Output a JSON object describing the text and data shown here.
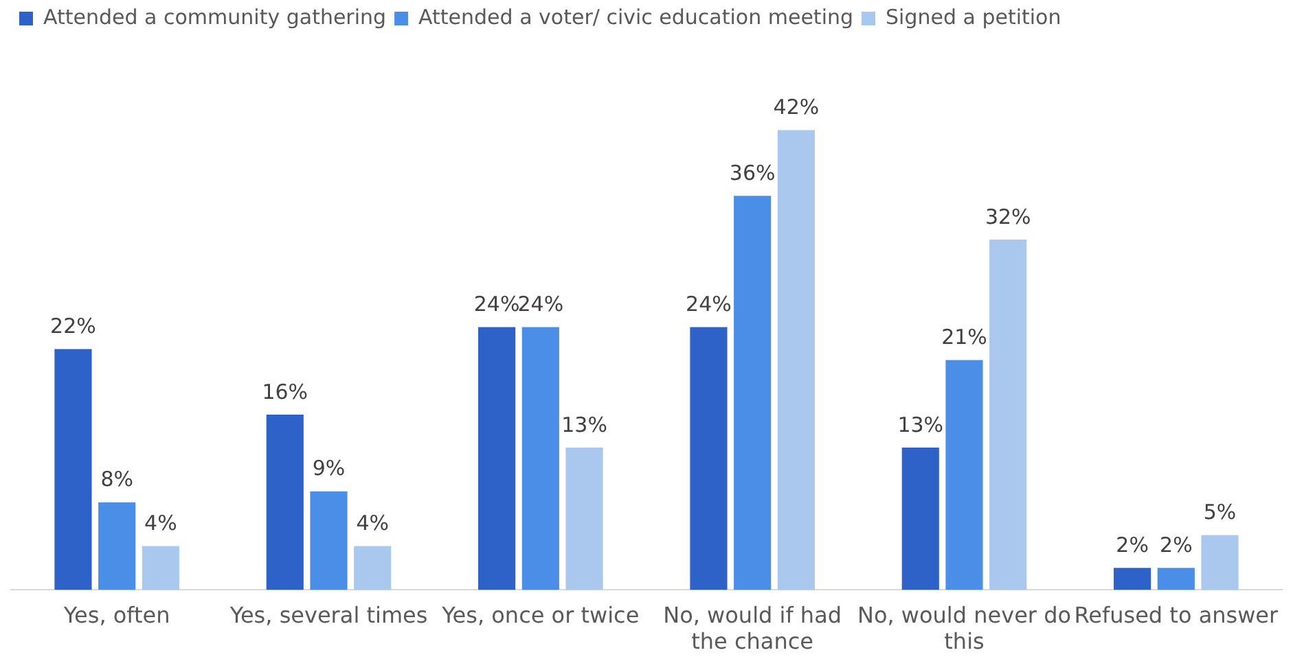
{
  "chart_data": {
    "type": "bar",
    "categories": [
      "Yes, often",
      "Yes, several times",
      "Yes, once or twice",
      "No, would if had the chance",
      "No, would never do this",
      "Refused to answer"
    ],
    "series": [
      {
        "name": "Attended a community gathering",
        "color": "#2e62c9",
        "values": [
          22,
          16,
          24,
          24,
          13,
          2
        ],
        "value_labels": [
          "22%",
          "16%",
          "24%",
          "24%",
          "13%",
          "2%"
        ]
      },
      {
        "name": "Attended a voter/ civic education meeting",
        "color": "#4a8ee8",
        "values": [
          8,
          9,
          24,
          36,
          21,
          2
        ],
        "value_labels": [
          "8%",
          "9%",
          "24%",
          "36%",
          "21%",
          "2%"
        ]
      },
      {
        "name": "Signed a petition",
        "color": "#aac8ee",
        "values": [
          4,
          4,
          13,
          42,
          32,
          5
        ],
        "value_labels": [
          "4%",
          "4%",
          "13%",
          "42%",
          "32%",
          "5%"
        ]
      }
    ],
    "legend": "top left",
    "grid": false,
    "tick_labels": "x"
  }
}
